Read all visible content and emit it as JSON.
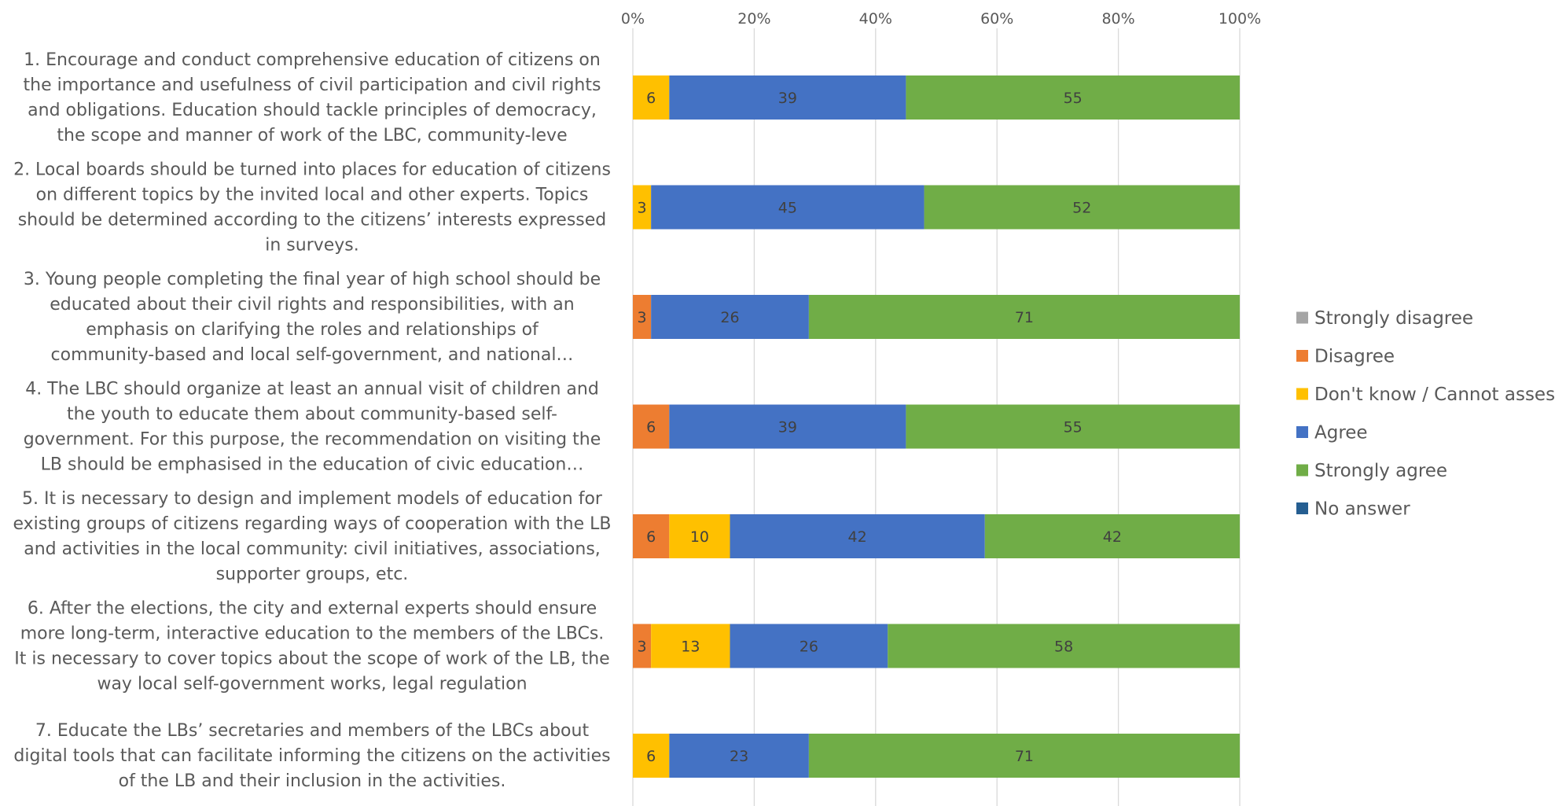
{
  "chart_data": {
    "type": "bar",
    "orientation": "horizontal",
    "stacked": "percent",
    "xlim": [
      0,
      100
    ],
    "x_ticks": [
      "0%",
      "20%",
      "40%",
      "60%",
      "80%",
      "100%"
    ],
    "x_axis_position": "top",
    "grid": true,
    "legend_position": "right",
    "categories": [
      [
        "1. Encourage and conduct comprehensive education of citizens on",
        "the importance and usefulness of civil participation and civil rights",
        "and obligations. Education should tackle principles of democracy,",
        "the scope and manner of work of the LBC, community-leve"
      ],
      [
        "2. Local boards should be turned into places for education of citizens",
        "on different topics by the invited local and other experts. Topics",
        "should be determined according to the citizens’ interests expressed",
        "in surveys."
      ],
      [
        "3. Young people completing the final year of high school should be",
        "educated about their civil rights and responsibilities, with an",
        "emphasis on clarifying the roles and relationships of",
        "community-based and local self-government, and national…"
      ],
      [
        "4. The LBC should organize at least an annual visit of children and",
        "the youth to educate them about community-based self-",
        "government. For this purpose, the recommendation on visiting the",
        "LB should be emphasised in the education of civic education…"
      ],
      [
        "5. It is necessary to design and implement models of education for",
        "existing groups of citizens regarding ways of cooperation with the LB",
        "and activities in the local community: civil initiatives, associations,",
        "supporter groups, etc."
      ],
      [
        "6. After the elections, the  city and external experts should ensure",
        "more long-term, interactive education to the members of the LBCs.",
        "It is necessary to cover topics about the scope of work of the LB, the",
        "way local self-government works, legal regulation"
      ],
      [
        "7. Educate the LBs’  secretaries and members of the LBCs about",
        "digital tools that can facilitate informing the citizens on the activities",
        "of the LB and their inclusion in the activities."
      ]
    ],
    "series": [
      {
        "name": "Strongly disagree",
        "color": "#A5A5A5",
        "values": [
          0,
          0,
          0,
          0,
          0,
          0,
          0
        ]
      },
      {
        "name": "Disagree",
        "color": "#ED7D31",
        "values": [
          0,
          0,
          3,
          6,
          6,
          3,
          0
        ]
      },
      {
        "name": "Don't know / Cannot assess",
        "color": "#FFC000",
        "values": [
          6,
          3,
          0,
          0,
          10,
          13,
          6
        ]
      },
      {
        "name": "Agree",
        "color": "#4472C4",
        "values": [
          39,
          45,
          26,
          39,
          42,
          26,
          23
        ]
      },
      {
        "name": "Strongly agree",
        "color": "#70AD47",
        "values": [
          55,
          52,
          71,
          55,
          42,
          58,
          71
        ]
      },
      {
        "name": "No answer",
        "color": "#255E91",
        "values": [
          0,
          0,
          0,
          0,
          0,
          0,
          0
        ]
      }
    ]
  }
}
